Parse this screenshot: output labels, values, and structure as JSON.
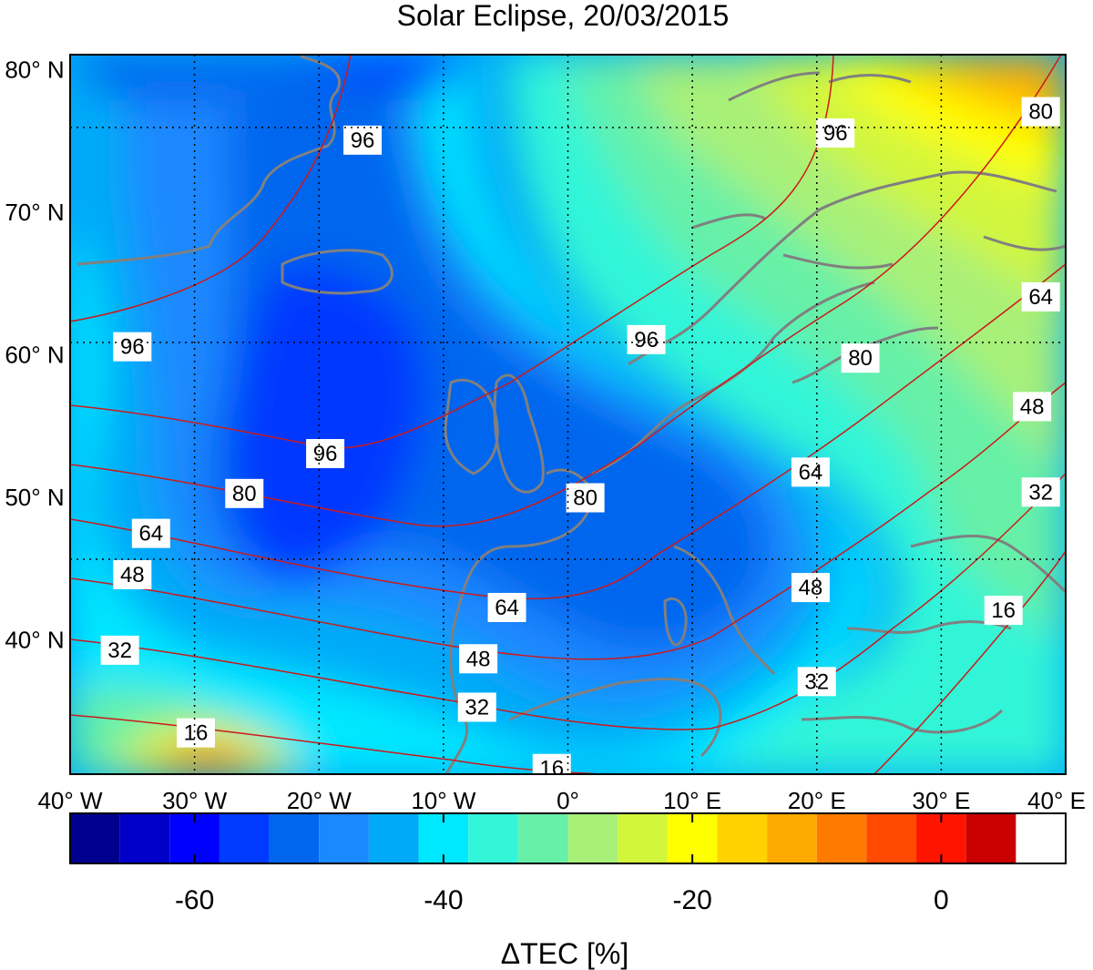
{
  "title": "Solar Eclipse, 20/03/2015",
  "map": {
    "lon_range": [
      -40,
      40
    ],
    "lat_range": [
      30.5,
      81
    ],
    "lon_ticks": [
      {
        "value": -40,
        "label": "40° W"
      },
      {
        "value": -30,
        "label": "30° W"
      },
      {
        "value": -20,
        "label": "20° W"
      },
      {
        "value": -10,
        "label": "10° W"
      },
      {
        "value": 0,
        "label": "0°"
      },
      {
        "value": 10,
        "label": "10° E"
      },
      {
        "value": 20,
        "label": "20° E"
      },
      {
        "value": 30,
        "label": "30° E"
      },
      {
        "value": 40,
        "label": "40° E"
      }
    ],
    "lat_ticks": [
      {
        "value": 80,
        "label": "80° N"
      },
      {
        "value": 70,
        "label": "70° N"
      },
      {
        "value": 60,
        "label": "60° N"
      },
      {
        "value": 50,
        "label": "50° N"
      },
      {
        "value": 40,
        "label": "40° N"
      }
    ],
    "grid_lines": "dotted",
    "filled_contour_variable": "ΔTEC [%]",
    "overlay_contour_levels": [
      16,
      32,
      48,
      64,
      80,
      96
    ],
    "overlay_color": "#cc1a1a",
    "coastline_color": "#808080"
  },
  "contour_labels": [
    {
      "text": "96",
      "lon": 6.3,
      "lat": 61.0
    },
    {
      "text": "96",
      "lon": -35.0,
      "lat": 60.5
    },
    {
      "text": "96",
      "lon": -19.5,
      "lat": 53.0
    },
    {
      "text": "96",
      "lon": -16.5,
      "lat": 75.0
    },
    {
      "text": "96",
      "lon": 21.5,
      "lat": 75.5
    },
    {
      "text": "80",
      "lon": 38.0,
      "lat": 77.0
    },
    {
      "text": "80",
      "lon": 23.5,
      "lat": 59.7
    },
    {
      "text": "80",
      "lon": 1.4,
      "lat": 49.9
    },
    {
      "text": "80",
      "lon": -26.0,
      "lat": 50.2
    },
    {
      "text": "64",
      "lon": 38.0,
      "lat": 64.0
    },
    {
      "text": "64",
      "lon": 19.5,
      "lat": 51.7
    },
    {
      "text": "64",
      "lon": -4.9,
      "lat": 42.2
    },
    {
      "text": "64",
      "lon": -33.5,
      "lat": 47.4
    },
    {
      "text": "48",
      "lon": 37.3,
      "lat": 56.3
    },
    {
      "text": "48",
      "lon": 19.5,
      "lat": 43.6
    },
    {
      "text": "48",
      "lon": -7.2,
      "lat": 38.6
    },
    {
      "text": "48",
      "lon": -35.0,
      "lat": 44.5
    },
    {
      "text": "32",
      "lon": 38.0,
      "lat": 50.3
    },
    {
      "text": "32",
      "lon": 20.0,
      "lat": 37.0
    },
    {
      "text": "32",
      "lon": -7.3,
      "lat": 35.2
    },
    {
      "text": "32",
      "lon": -36.0,
      "lat": 39.2
    },
    {
      "text": "16",
      "lon": 35.0,
      "lat": 42.0
    },
    {
      "text": "16",
      "lon": -29.9,
      "lat": 33.4
    },
    {
      "text": "16",
      "lon": -1.3,
      "lat": 30.9
    }
  ],
  "colorbar": {
    "label": "ΔTEC [%]",
    "range": [
      -70,
      10
    ],
    "step": 4,
    "ticks": [
      {
        "value": -60,
        "label": "-60"
      },
      {
        "value": -40,
        "label": "-40"
      },
      {
        "value": -20,
        "label": "-20"
      },
      {
        "value": 0,
        "label": "0"
      }
    ],
    "colors": [
      "#00008f",
      "#0000c8",
      "#0000ff",
      "#0039ff",
      "#0066ee",
      "#1a88ff",
      "#00aaf8",
      "#00e8ff",
      "#33f5d8",
      "#66f0a8",
      "#a8f078",
      "#d2f63c",
      "#ffff00",
      "#ffd200",
      "#ffaa00",
      "#ff7a00",
      "#ff4a00",
      "#ff1400",
      "#c80000"
    ]
  }
}
